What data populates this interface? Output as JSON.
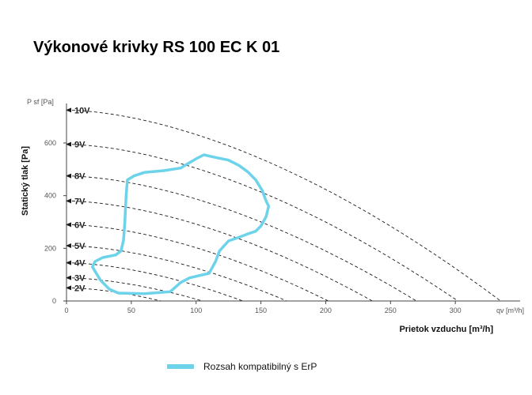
{
  "title": "Výkonové krivky RS 100 EC K 01",
  "legend": {
    "label": "Rozsah kompatibilný s ErP"
  },
  "colors": {
    "envelope": "#6dd3ea",
    "curve": "#1a1a1a",
    "axis": "#444444"
  },
  "chart_data": {
    "type": "line",
    "title": "Výkonové krivky RS 100 EC K 01",
    "xlabel": "Prietok vzduchu [m³/h]",
    "ylabel": "Statický tlak [Pa]",
    "x_unit": "qv [m³/h]",
    "y_unit": "P sf [Pa]",
    "xlim": [
      0,
      350
    ],
    "ylim": [
      0,
      750
    ],
    "x_ticks": [
      "0",
      "50",
      "100",
      "150",
      "200",
      "250",
      "300"
    ],
    "y_ticks": [
      "0",
      "200",
      "400",
      "600"
    ],
    "grid": false,
    "legend_position": "bottom",
    "series": [
      {
        "name": "10V",
        "p0": 725,
        "q_max": 335
      },
      {
        "name": "9V",
        "p0": 595,
        "q_max": 302
      },
      {
        "name": "8V",
        "p0": 475,
        "q_max": 270
      },
      {
        "name": "7V",
        "p0": 380,
        "q_max": 236
      },
      {
        "name": "6V",
        "p0": 290,
        "q_max": 202
      },
      {
        "name": "5V",
        "p0": 210,
        "q_max": 170
      },
      {
        "name": "4V",
        "p0": 145,
        "q_max": 136
      },
      {
        "name": "3V",
        "p0": 88,
        "q_max": 105
      },
      {
        "name": "2V",
        "p0": 50,
        "q_max": 73
      }
    ],
    "envelope": {
      "name": "Rozsah kompatibilný s ErP",
      "x": [
        47,
        52,
        60,
        75,
        88,
        93,
        100,
        106,
        115,
        125,
        133,
        140,
        146,
        151,
        154,
        156,
        154,
        150,
        146,
        140,
        132,
        125,
        118,
        115,
        110,
        95,
        88,
        80,
        60,
        40,
        33,
        26,
        20,
        22,
        28,
        38,
        42,
        44,
        45,
        46,
        47
      ],
      "y": [
        460,
        475,
        488,
        495,
        505,
        520,
        540,
        555,
        545,
        535,
        515,
        490,
        460,
        420,
        380,
        360,
        320,
        285,
        265,
        255,
        240,
        228,
        190,
        150,
        105,
        88,
        70,
        35,
        28,
        30,
        45,
        80,
        130,
        150,
        165,
        175,
        190,
        230,
        300,
        400,
        460
      ]
    }
  }
}
